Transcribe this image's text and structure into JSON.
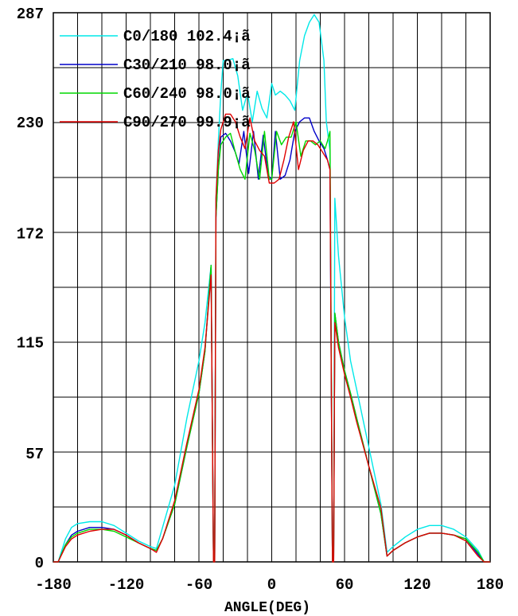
{
  "chart_data": {
    "type": "line",
    "title": "",
    "xlabel": "ANGLE(DEG)",
    "ylabel": "",
    "xlim": [
      -180,
      180
    ],
    "ylim": [
      0,
      287
    ],
    "x_ticks": [
      -180,
      -120,
      -60,
      0,
      60,
      120,
      180
    ],
    "y_ticks": [
      0,
      57,
      115,
      172,
      230,
      287
    ],
    "grid": true,
    "legend_position": "top-left",
    "series": [
      {
        "name": "C0/180 102.4¡ã",
        "color": "#00e8e8",
        "points": [
          [
            -180,
            0
          ],
          [
            -176,
            0
          ],
          [
            -170,
            12
          ],
          [
            -165,
            18
          ],
          [
            -160,
            20
          ],
          [
            -150,
            21
          ],
          [
            -140,
            21
          ],
          [
            -130,
            19
          ],
          [
            -120,
            15
          ],
          [
            -110,
            11
          ],
          [
            -100,
            8
          ],
          [
            -95,
            7
          ],
          [
            -90,
            18
          ],
          [
            -80,
            40
          ],
          [
            -70,
            75
          ],
          [
            -60,
            105
          ],
          [
            -55,
            125
          ],
          [
            -50,
            155
          ],
          [
            -48,
            0
          ],
          [
            -47,
            0
          ],
          [
            -46,
            190
          ],
          [
            -44,
            220
          ],
          [
            -42,
            245
          ],
          [
            -40,
            262
          ],
          [
            -37,
            262
          ],
          [
            -32,
            263
          ],
          [
            -28,
            254
          ],
          [
            -24,
            236
          ],
          [
            -20,
            245
          ],
          [
            -16,
            230
          ],
          [
            -12,
            246
          ],
          [
            -8,
            237
          ],
          [
            -4,
            232
          ],
          [
            0,
            250
          ],
          [
            3,
            244
          ],
          [
            7,
            246
          ],
          [
            11,
            244
          ],
          [
            15,
            241
          ],
          [
            19,
            236
          ],
          [
            23,
            262
          ],
          [
            27,
            275
          ],
          [
            31,
            282
          ],
          [
            35,
            286
          ],
          [
            39,
            282
          ],
          [
            43,
            262
          ],
          [
            45,
            230
          ],
          [
            48,
            215
          ],
          [
            50,
            0
          ],
          [
            51,
            0
          ],
          [
            52,
            190
          ],
          [
            55,
            160
          ],
          [
            60,
            128
          ],
          [
            65,
            105
          ],
          [
            70,
            90
          ],
          [
            80,
            60
          ],
          [
            90,
            30
          ],
          [
            95,
            5
          ],
          [
            100,
            8
          ],
          [
            110,
            13
          ],
          [
            120,
            17
          ],
          [
            130,
            19
          ],
          [
            140,
            19
          ],
          [
            150,
            17
          ],
          [
            160,
            13
          ],
          [
            170,
            6
          ],
          [
            175,
            0
          ],
          [
            180,
            0
          ]
        ]
      },
      {
        "name": "C30/210 98.0¡ã",
        "color": "#0000c8",
        "points": [
          [
            -180,
            0
          ],
          [
            -176,
            0
          ],
          [
            -170,
            9
          ],
          [
            -165,
            14
          ],
          [
            -160,
            16
          ],
          [
            -150,
            18
          ],
          [
            -140,
            18
          ],
          [
            -130,
            17
          ],
          [
            -120,
            14
          ],
          [
            -110,
            10
          ],
          [
            -100,
            7
          ],
          [
            -95,
            6
          ],
          [
            -90,
            12
          ],
          [
            -80,
            30
          ],
          [
            -70,
            60
          ],
          [
            -60,
            88
          ],
          [
            -55,
            110
          ],
          [
            -50,
            155
          ],
          [
            -48,
            0
          ],
          [
            -47,
            0
          ],
          [
            -46,
            180
          ],
          [
            -44,
            205
          ],
          [
            -42,
            222
          ],
          [
            -38,
            224
          ],
          [
            -34,
            220
          ],
          [
            -30,
            214
          ],
          [
            -27,
            208
          ],
          [
            -23,
            225
          ],
          [
            -19,
            203
          ],
          [
            -15,
            225
          ],
          [
            -11,
            200
          ],
          [
            -7,
            223
          ],
          [
            -3,
            202
          ],
          [
            0,
            200
          ],
          [
            3,
            225
          ],
          [
            7,
            200
          ],
          [
            11,
            202
          ],
          [
            15,
            210
          ],
          [
            19,
            225
          ],
          [
            23,
            230
          ],
          [
            27,
            232
          ],
          [
            31,
            232
          ],
          [
            35,
            225
          ],
          [
            39,
            220
          ],
          [
            43,
            216
          ],
          [
            46,
            210
          ],
          [
            48,
            205
          ],
          [
            50,
            0
          ],
          [
            51,
            0
          ],
          [
            52,
            130
          ],
          [
            55,
            115
          ],
          [
            60,
            100
          ],
          [
            65,
            88
          ],
          [
            70,
            75
          ],
          [
            80,
            50
          ],
          [
            90,
            25
          ],
          [
            95,
            3
          ],
          [
            100,
            6
          ],
          [
            110,
            10
          ],
          [
            120,
            13
          ],
          [
            130,
            15
          ],
          [
            140,
            15
          ],
          [
            150,
            14
          ],
          [
            160,
            12
          ],
          [
            170,
            4
          ],
          [
            175,
            0
          ],
          [
            180,
            0
          ]
        ]
      },
      {
        "name": "C60/240 98.0¡ã",
        "color": "#00d800",
        "points": [
          [
            -180,
            0
          ],
          [
            -176,
            0
          ],
          [
            -170,
            9
          ],
          [
            -165,
            13
          ],
          [
            -160,
            15
          ],
          [
            -150,
            17
          ],
          [
            -140,
            17
          ],
          [
            -130,
            16
          ],
          [
            -120,
            13
          ],
          [
            -110,
            10
          ],
          [
            -100,
            7
          ],
          [
            -95,
            6
          ],
          [
            -90,
            12
          ],
          [
            -80,
            30
          ],
          [
            -70,
            60
          ],
          [
            -60,
            88
          ],
          [
            -55,
            110
          ],
          [
            -50,
            155
          ],
          [
            -48,
            0
          ],
          [
            -47,
            0
          ],
          [
            -46,
            180
          ],
          [
            -44,
            205
          ],
          [
            -42,
            218
          ],
          [
            -38,
            222
          ],
          [
            -34,
            224
          ],
          [
            -30,
            214
          ],
          [
            -26,
            205
          ],
          [
            -22,
            200
          ],
          [
            -18,
            224
          ],
          [
            -14,
            215
          ],
          [
            -10,
            200
          ],
          [
            -6,
            225
          ],
          [
            -2,
            200
          ],
          [
            0,
            200
          ],
          [
            4,
            225
          ],
          [
            8,
            218
          ],
          [
            12,
            222
          ],
          [
            16,
            222
          ],
          [
            20,
            230
          ],
          [
            24,
            212
          ],
          [
            28,
            220
          ],
          [
            32,
            220
          ],
          [
            36,
            218
          ],
          [
            40,
            220
          ],
          [
            44,
            216
          ],
          [
            46,
            220
          ],
          [
            48,
            225
          ],
          [
            50,
            0
          ],
          [
            51,
            0
          ],
          [
            52,
            130
          ],
          [
            55,
            115
          ],
          [
            60,
            100
          ],
          [
            65,
            88
          ],
          [
            70,
            75
          ],
          [
            80,
            50
          ],
          [
            90,
            25
          ],
          [
            95,
            3
          ],
          [
            100,
            6
          ],
          [
            110,
            10
          ],
          [
            120,
            13
          ],
          [
            130,
            15
          ],
          [
            140,
            15
          ],
          [
            150,
            14
          ],
          [
            160,
            12
          ],
          [
            170,
            5
          ],
          [
            175,
            0
          ],
          [
            180,
            0
          ]
        ]
      },
      {
        "name": "C90/270 99.9¡ã",
        "color": "#e00000",
        "points": [
          [
            -180,
            0
          ],
          [
            -176,
            0
          ],
          [
            -170,
            8
          ],
          [
            -165,
            12
          ],
          [
            -160,
            14
          ],
          [
            -150,
            16
          ],
          [
            -140,
            17
          ],
          [
            -130,
            17
          ],
          [
            -120,
            14
          ],
          [
            -110,
            10
          ],
          [
            -100,
            7
          ],
          [
            -95,
            5
          ],
          [
            -90,
            12
          ],
          [
            -80,
            32
          ],
          [
            -70,
            62
          ],
          [
            -60,
            90
          ],
          [
            -55,
            112
          ],
          [
            -50,
            150
          ],
          [
            -48,
            0
          ],
          [
            -47,
            0
          ],
          [
            -46,
            190
          ],
          [
            -44,
            215
          ],
          [
            -42,
            226
          ],
          [
            -38,
            234
          ],
          [
            -34,
            234
          ],
          [
            -30,
            230
          ],
          [
            -26,
            222
          ],
          [
            -22,
            216
          ],
          [
            -18,
            232
          ],
          [
            -14,
            220
          ],
          [
            -10,
            215
          ],
          [
            -6,
            212
          ],
          [
            -2,
            198
          ],
          [
            2,
            198
          ],
          [
            6,
            200
          ],
          [
            10,
            210
          ],
          [
            14,
            222
          ],
          [
            18,
            230
          ],
          [
            22,
            205
          ],
          [
            26,
            215
          ],
          [
            30,
            220
          ],
          [
            34,
            220
          ],
          [
            38,
            218
          ],
          [
            42,
            214
          ],
          [
            46,
            210
          ],
          [
            48,
            205
          ],
          [
            50,
            0
          ],
          [
            51,
            0
          ],
          [
            52,
            125
          ],
          [
            55,
            112
          ],
          [
            60,
            98
          ],
          [
            65,
            86
          ],
          [
            70,
            73
          ],
          [
            80,
            50
          ],
          [
            90,
            28
          ],
          [
            95,
            3
          ],
          [
            100,
            6
          ],
          [
            110,
            10
          ],
          [
            120,
            13
          ],
          [
            130,
            15
          ],
          [
            140,
            15
          ],
          [
            150,
            14
          ],
          [
            160,
            11
          ],
          [
            170,
            3
          ],
          [
            175,
            0
          ],
          [
            180,
            0
          ]
        ]
      }
    ]
  }
}
